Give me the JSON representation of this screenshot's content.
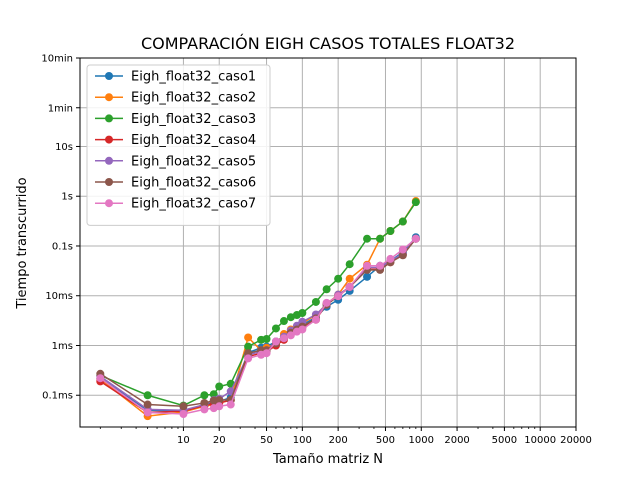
{
  "chart_data": {
    "type": "line",
    "title": "COMPARACIÓN EIGH CASOS TOTALES FLOAT32",
    "xlabel": "Tamaño matriz N",
    "ylabel": "Tiempo transcurrido",
    "xscale": "log",
    "yscale": "log",
    "xlim": [
      1.35,
      20000
    ],
    "ylim": [
      2.3e-05,
      600
    ],
    "grid": true,
    "legend_position": "top-left",
    "x_ticks": [
      {
        "value": 10,
        "label": "10"
      },
      {
        "value": 20,
        "label": "20"
      },
      {
        "value": 50,
        "label": "50"
      },
      {
        "value": 100,
        "label": "100"
      },
      {
        "value": 200,
        "label": "200"
      },
      {
        "value": 500,
        "label": "500"
      },
      {
        "value": 1000,
        "label": "1000"
      },
      {
        "value": 2000,
        "label": "2000"
      },
      {
        "value": 5000,
        "label": "5000"
      },
      {
        "value": 10000,
        "label": "10000"
      },
      {
        "value": 20000,
        "label": "20000"
      }
    ],
    "y_ticks": [
      {
        "value": 0.0001,
        "label": "0.1ms"
      },
      {
        "value": 0.001,
        "label": "1ms"
      },
      {
        "value": 0.01,
        "label": "10ms"
      },
      {
        "value": 0.1,
        "label": "0.1s"
      },
      {
        "value": 1,
        "label": "1s"
      },
      {
        "value": 10,
        "label": "10s"
      },
      {
        "value": 60,
        "label": "1min"
      },
      {
        "value": 600,
        "label": "10min"
      }
    ],
    "series": [
      {
        "name": "Eigh_float32_caso1",
        "color": "#1f77b4",
        "x": [
          2,
          5,
          10,
          15,
          18,
          20,
          25,
          35,
          45,
          50,
          60,
          70,
          80,
          90,
          100,
          130,
          160,
          200,
          250,
          350,
          450,
          550,
          700,
          900
        ],
        "y": [
          0.00022,
          5e-05,
          4.8e-05,
          6.5e-05,
          7e-05,
          7.5e-05,
          9e-05,
          0.00072,
          0.0009,
          0.00095,
          0.0012,
          0.0015,
          0.0019,
          0.0022,
          0.0026,
          0.0037,
          0.006,
          0.0083,
          0.0125,
          0.024,
          0.04,
          0.05,
          0.075,
          0.15
        ]
      },
      {
        "name": "Eigh_float32_caso2",
        "color": "#ff7f0e",
        "x": [
          2,
          5,
          10,
          15,
          18,
          20,
          25,
          35,
          45,
          50,
          60,
          70,
          80,
          90,
          100,
          130,
          160,
          200,
          250,
          350,
          450,
          550,
          700,
          900
        ],
        "y": [
          0.00021,
          3.8e-05,
          4.6e-05,
          6e-05,
          6.5e-05,
          7e-05,
          8e-05,
          0.00145,
          0.0008,
          0.0009,
          0.0011,
          0.0017,
          0.0021,
          0.0024,
          0.0028,
          0.0041,
          0.0069,
          0.0105,
          0.022,
          0.042,
          0.14,
          0.2,
          0.31,
          0.8
        ]
      },
      {
        "name": "Eigh_float32_caso3",
        "color": "#2ca02c",
        "x": [
          2,
          5,
          10,
          15,
          18,
          20,
          25,
          35,
          45,
          50,
          60,
          70,
          80,
          90,
          100,
          130,
          160,
          200,
          250,
          350,
          450,
          550,
          700,
          900
        ],
        "y": [
          0.00025,
          0.0001,
          6.2e-05,
          0.0001,
          0.000105,
          0.00015,
          0.00017,
          0.00095,
          0.0013,
          0.00135,
          0.0022,
          0.0031,
          0.0037,
          0.0041,
          0.0045,
          0.0075,
          0.0135,
          0.022,
          0.043,
          0.14,
          0.14,
          0.2,
          0.31,
          0.76
        ]
      },
      {
        "name": "Eigh_float32_caso4",
        "color": "#d62728",
        "x": [
          2,
          5,
          10,
          15,
          18,
          20,
          25,
          35,
          45,
          50,
          60,
          70,
          80,
          90,
          100,
          130,
          160,
          200,
          250,
          350,
          450,
          550,
          700,
          900
        ],
        "y": [
          0.00019,
          4.5e-05,
          4.8e-05,
          6.2e-05,
          6.8e-05,
          7e-05,
          8e-05,
          0.0006,
          0.0007,
          0.00075,
          0.001,
          0.0013,
          0.0017,
          0.002,
          0.0023,
          0.0033,
          0.0068,
          0.0098,
          0.015,
          0.034,
          0.034,
          0.047,
          0.068,
          0.14
        ]
      },
      {
        "name": "Eigh_float32_caso5",
        "color": "#9467bd",
        "x": [
          2,
          5,
          10,
          15,
          18,
          20,
          25,
          35,
          45,
          50,
          60,
          70,
          80,
          90,
          100,
          130,
          160,
          200,
          250,
          350,
          450,
          550,
          700,
          900
        ],
        "y": [
          0.00024,
          5.2e-05,
          5e-05,
          6.5e-05,
          8e-05,
          8.5e-05,
          0.00012,
          0.00065,
          0.00075,
          0.0008,
          0.0012,
          0.0015,
          0.002,
          0.0025,
          0.003,
          0.0042,
          0.0066,
          0.0105,
          0.015,
          0.037,
          0.037,
          0.05,
          0.07,
          0.14
        ]
      },
      {
        "name": "Eigh_float32_caso6",
        "color": "#8c564b",
        "x": [
          2,
          5,
          10,
          15,
          18,
          20,
          25,
          35,
          45,
          50,
          60,
          70,
          80,
          90,
          100,
          130,
          160,
          200,
          250,
          350,
          450,
          550,
          700,
          900
        ],
        "y": [
          0.00027,
          6.5e-05,
          6e-05,
          7e-05,
          7.8e-05,
          8e-05,
          8e-05,
          0.0007,
          0.0008,
          0.0008,
          0.0011,
          0.0014,
          0.0018,
          0.0021,
          0.0024,
          0.0035,
          0.0066,
          0.0098,
          0.015,
          0.033,
          0.033,
          0.047,
          0.065,
          0.14
        ]
      },
      {
        "name": "Eigh_float32_caso7",
        "color": "#e377c2",
        "x": [
          2,
          5,
          10,
          15,
          18,
          20,
          25,
          35,
          45,
          50,
          60,
          70,
          80,
          90,
          100,
          130,
          160,
          200,
          250,
          350,
          450,
          550,
          700,
          900
        ],
        "y": [
          0.00022,
          4.5e-05,
          4.2e-05,
          5.2e-05,
          5.5e-05,
          6e-05,
          6.5e-05,
          0.00055,
          0.00065,
          0.0007,
          0.0012,
          0.0014,
          0.0016,
          0.0019,
          0.0021,
          0.0033,
          0.0072,
          0.0098,
          0.015,
          0.04,
          0.04,
          0.055,
          0.085,
          0.14
        ]
      }
    ]
  }
}
